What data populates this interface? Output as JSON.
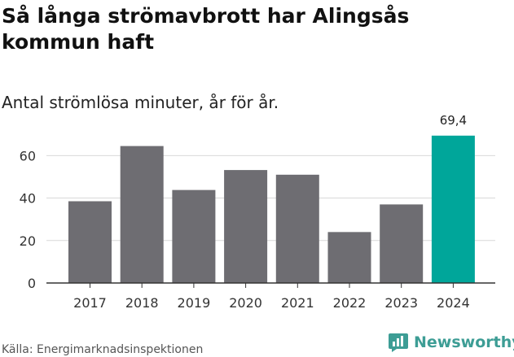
{
  "title": "Så långa strömavbrott har Alingsås kommun haft",
  "subtitle": "Antal strömlösa minuter, år för år.",
  "source": "Källa: Energimarknadsinspektionen",
  "brand": {
    "name": "Newsworthy",
    "icon": "newsworthy-logo-icon",
    "color": "#3d9d95"
  },
  "colors": {
    "bar": "#6e6d72",
    "highlight": "#00a69a",
    "grid": "#d9d9d9",
    "axis": "#333333"
  },
  "chart_data": {
    "type": "bar",
    "title": "Så långa strömavbrott har Alingsås kommun haft",
    "subtitle": "Antal strömlösa minuter, år för år.",
    "xlabel": "",
    "ylabel": "",
    "categories": [
      "2017",
      "2018",
      "2019",
      "2020",
      "2021",
      "2022",
      "2023",
      "2024"
    ],
    "values": [
      38.5,
      64.5,
      43.8,
      53.2,
      51.0,
      24.0,
      37.0,
      69.4
    ],
    "highlight_index": 7,
    "data_labels": [
      {
        "index": 7,
        "text": "69,4"
      }
    ],
    "ylim": [
      0,
      72
    ],
    "yticks": [
      0,
      20,
      40,
      60
    ],
    "grid": true,
    "legend": "none"
  }
}
